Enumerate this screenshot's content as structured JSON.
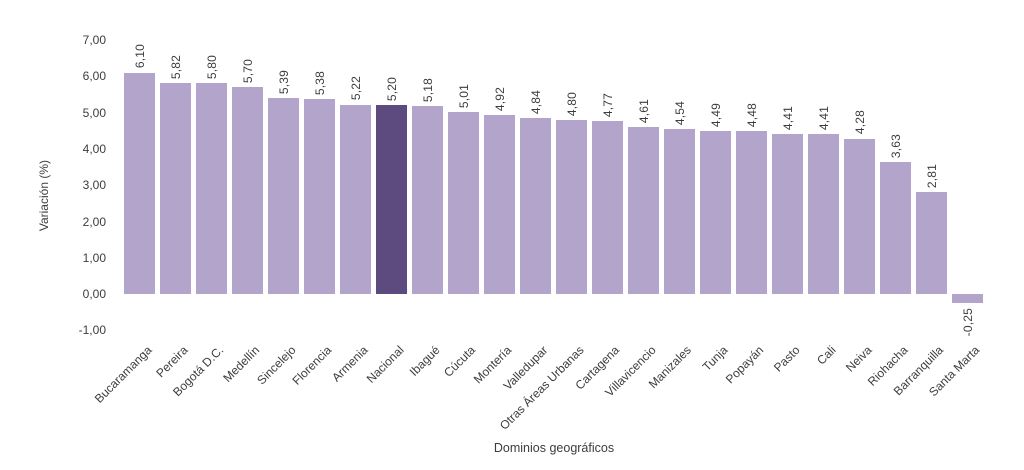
{
  "chart_data": {
    "type": "bar",
    "title": "",
    "xlabel": "Dominios geográficos",
    "ylabel": "Variación (%)",
    "categories": [
      "Bucaramanga",
      "Pereira",
      "Bogotá D.C.",
      "Medellín",
      "Sincelejo",
      "Florencia",
      "Armenia",
      "Nacional",
      "Ibagué",
      "Cúcuta",
      "Montería",
      "Valledupar",
      "Otras Áreas Urbanas",
      "Cartagena",
      "Villavicencio",
      "Manizales",
      "Tunja",
      "Popayán",
      "Pasto",
      "Cali",
      "Neiva",
      "Riohacha",
      "Barranquilla",
      "Santa Marta"
    ],
    "values": [
      6.1,
      5.82,
      5.8,
      5.7,
      5.39,
      5.38,
      5.22,
      5.2,
      5.18,
      5.01,
      4.92,
      4.84,
      4.8,
      4.77,
      4.61,
      4.54,
      4.49,
      4.48,
      4.41,
      4.41,
      4.28,
      3.63,
      2.81,
      -0.25
    ],
    "value_labels": [
      "6,10",
      "5,82",
      "5,80",
      "5,70",
      "5,39",
      "5,38",
      "5,22",
      "5,20",
      "5,18",
      "5,01",
      "4,92",
      "4,84",
      "4,80",
      "4,77",
      "4,61",
      "4,54",
      "4,49",
      "4,48",
      "4,41",
      "4,41",
      "4,28",
      "3,63",
      "2,81",
      "-0,25"
    ],
    "yticks": [
      "7,00",
      "6,00",
      "5,00",
      "4,00",
      "3,00",
      "2,00",
      "1,00",
      "0,00",
      "-1,00"
    ],
    "ylim": [
      -1,
      7
    ],
    "grid": false,
    "legend_position": "none",
    "highlight_category": "Nacional",
    "colors": {
      "bar_fill": "#b2a4ca",
      "highlight_fill": "#5d4a7f",
      "text": "#3d3d3d",
      "background": "#ffffff"
    }
  }
}
